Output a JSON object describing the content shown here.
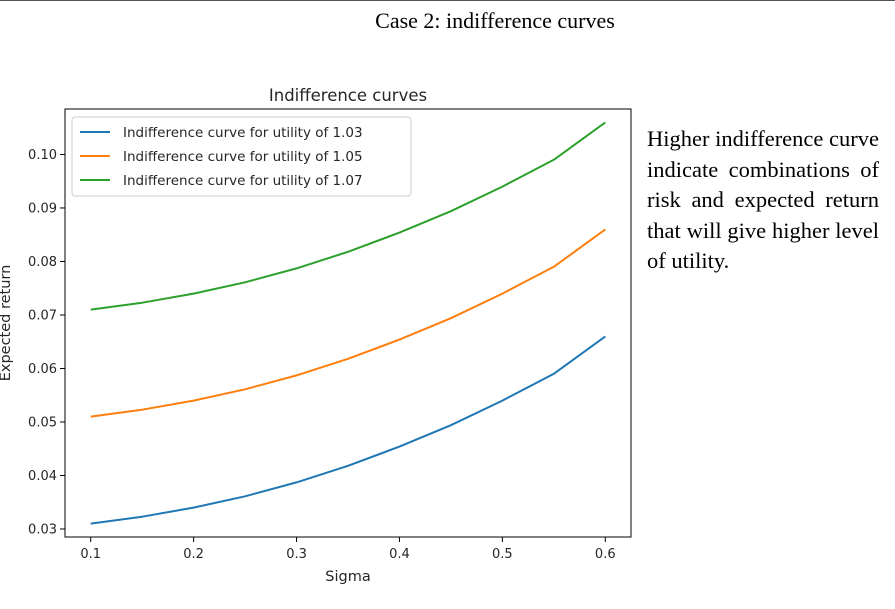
{
  "slide": {
    "heading": "Case 2: indifference curves",
    "side_text": "Higher indifference curve indicate combinations of risk and expected return that will give higher level of utility."
  },
  "chart_data": {
    "type": "line",
    "title": "Indifference curves",
    "xlabel": "Sigma",
    "ylabel": "Expected return",
    "xlim": [
      0.075,
      0.625
    ],
    "ylim": [
      0.0285,
      0.1085
    ],
    "xticks": [
      0.1,
      0.2,
      0.3,
      0.4,
      0.5,
      0.6
    ],
    "xtick_labels": [
      "0.1",
      "0.2",
      "0.3",
      "0.4",
      "0.5",
      "0.6"
    ],
    "yticks": [
      0.03,
      0.04,
      0.05,
      0.06,
      0.07,
      0.08,
      0.09,
      0.1
    ],
    "ytick_labels": [
      "0.03",
      "0.04",
      "0.05",
      "0.06",
      "0.07",
      "0.08",
      "0.09",
      "0.10"
    ],
    "grid": false,
    "legend_position": "upper-left",
    "x": [
      0.1,
      0.15,
      0.2,
      0.25,
      0.3,
      0.35,
      0.4,
      0.45,
      0.5,
      0.55,
      0.6
    ],
    "series": [
      {
        "name": "Indifference curve for utility of 1.03",
        "color": "#1f77b4",
        "values": [
          0.031,
          0.0323,
          0.034,
          0.0361,
          0.0387,
          0.0418,
          0.0454,
          0.0494,
          0.054,
          0.059,
          0.066
        ]
      },
      {
        "name": "Indifference curve for utility of 1.05",
        "color": "#ff7f0e",
        "values": [
          0.051,
          0.0523,
          0.054,
          0.0561,
          0.0587,
          0.0618,
          0.0654,
          0.0694,
          0.074,
          0.079,
          0.086
        ]
      },
      {
        "name": "Indifference curve for utility of 1.07",
        "color": "#2ca02c",
        "values": [
          0.071,
          0.0723,
          0.074,
          0.0761,
          0.0787,
          0.0818,
          0.0854,
          0.0894,
          0.094,
          0.099,
          0.106
        ]
      }
    ]
  }
}
